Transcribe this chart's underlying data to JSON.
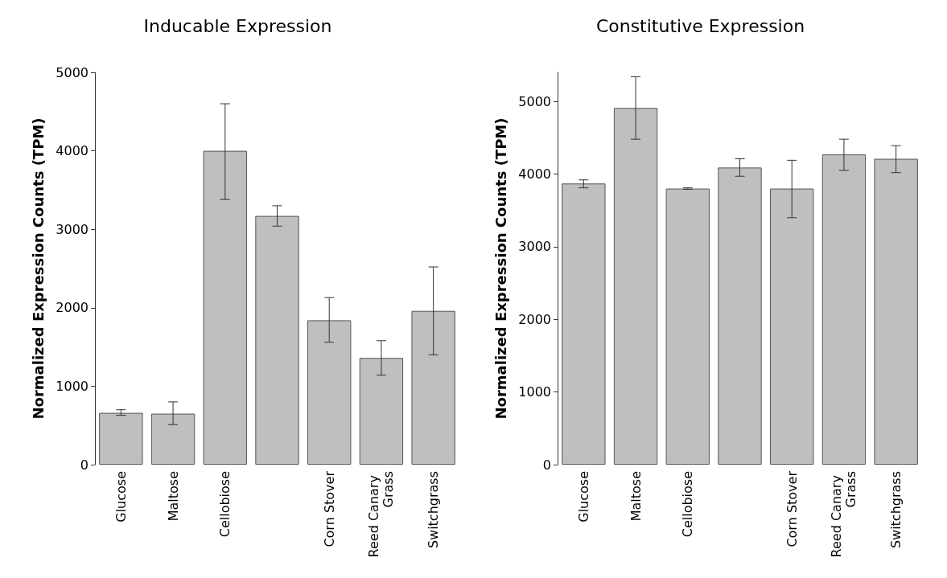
{
  "chart_data": [
    {
      "type": "bar",
      "title": "Inducable Expression",
      "ylabel": "Normalized Expression Counts (TPM)",
      "categories": [
        "Glucose",
        "Maltose",
        "Cellobiose",
        null,
        "Corn Stover",
        "Reed Canary Grass",
        "Switchgrass"
      ],
      "series": [
        {
          "color": "#bfbfbf",
          "values": [
            660,
            650,
            4000,
            3170,
            1840,
            1360,
            1960
          ],
          "errors": [
            [
              630,
              700
            ],
            [
              510,
              800
            ],
            [
              3380,
              4600
            ],
            [
              3040,
              3300
            ],
            [
              1560,
              2130
            ],
            [
              1140,
              1580
            ],
            [
              1400,
              2520
            ]
          ]
        }
      ],
      "ylim": [
        0,
        5000
      ],
      "yticks": [
        0,
        1000,
        2000,
        3000,
        4000,
        5000
      ],
      "grid": false
    },
    {
      "type": "bar",
      "title": "Constitutive Expression",
      "ylabel": "Normalized Expression Counts (TPM)",
      "categories": [
        "Glucose",
        "Maltose",
        "Cellobiose",
        null,
        "Corn Stover",
        "Reed Canary Grass",
        "Switchgrass"
      ],
      "series": [
        {
          "color": "#bfbfbf",
          "values": [
            3870,
            4910,
            3800,
            4090,
            3800,
            4270,
            4210
          ],
          "errors": [
            [
              3810,
              3920
            ],
            [
              4480,
              5340
            ],
            [
              3790,
              3810
            ],
            [
              3970,
              4210
            ],
            [
              3400,
              4190
            ],
            [
              4050,
              4480
            ],
            [
              4020,
              4390
            ]
          ]
        }
      ],
      "ylim": [
        0,
        5400
      ],
      "yticks": [
        0,
        1000,
        2000,
        3000,
        4000,
        5000
      ],
      "grid": false
    }
  ]
}
